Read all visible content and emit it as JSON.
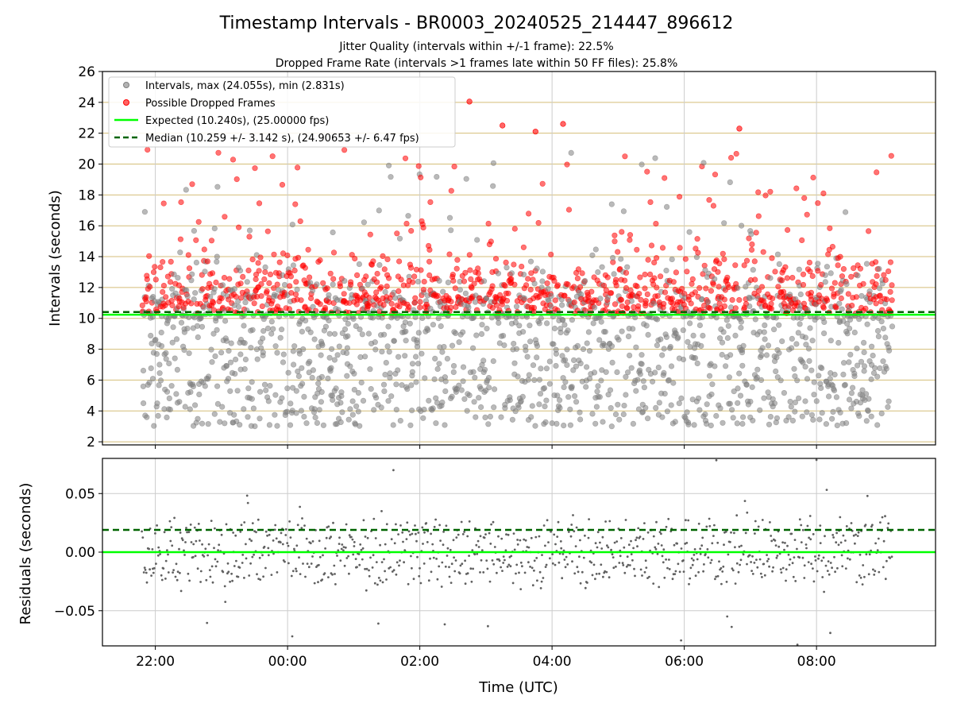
{
  "figure": {
    "title": "Timestamp Intervals - BR0003_20240525_214447_896612",
    "subtitle_1": "Jitter Quality (intervals within +/-1 frame): 22.5%",
    "subtitle_2": "Dropped Frame Rate (intervals >1 frames late within 50 FF files): 25.8%",
    "colors": {
      "interval_points": "#808080",
      "dropped_points": "#ff0000",
      "expected_line": "#00ff00",
      "median_line": "#006400",
      "top_grid": "#d4be78",
      "grid": "#cccccc"
    }
  },
  "chart_data": [
    {
      "type": "scatter",
      "name": "intervals",
      "xlabel": "",
      "ylabel": "Intervals (seconds)",
      "x_ticks": [
        "22:00",
        "00:00",
        "02:00",
        "04:00",
        "06:00",
        "08:00"
      ],
      "x_tick_hours": [
        0,
        2,
        4,
        6,
        8,
        10
      ],
      "x_range_hours": [
        -0.8,
        11.8
      ],
      "data_x_range_hours": [
        -0.2,
        11.15
      ],
      "y_ticks": [
        2,
        4,
        6,
        8,
        10,
        12,
        14,
        16,
        18,
        20,
        22,
        24,
        26
      ],
      "ylim": [
        1.8,
        26
      ],
      "grid": "horizontal",
      "legend_position": "upper-left",
      "legend": [
        "Intervals, max (24.055s), min (2.831s)",
        "Possible Dropped Frames",
        "Expected (10.240s), (25.00000 fps)",
        "Median (10.259 +/- 3.142 s), (24.90653 +/- 6.47 fps)"
      ],
      "expected_interval": 10.24,
      "median_interval": 10.259,
      "max_interval": 24.055,
      "min_interval": 2.831,
      "dropped_threshold": 10.3,
      "point_count": 2400,
      "notable_points": [
        {
          "x": "~02:45",
          "y": 24.05
        },
        {
          "x": "~04:10",
          "y": 22.6
        },
        {
          "x": "~03:15",
          "y": 22.5
        },
        {
          "x": "~06:50",
          "y": 22.3
        },
        {
          "x": "~03:45",
          "y": 22.1
        }
      ]
    },
    {
      "type": "scatter",
      "name": "residuals",
      "xlabel": "Time (UTC)",
      "ylabel": "Residuals (seconds)",
      "x_ticks": [
        "22:00",
        "00:00",
        "02:00",
        "04:00",
        "06:00",
        "08:00"
      ],
      "y_ticks": [
        "0.05",
        "0.00",
        "−0.05"
      ],
      "y_tick_values": [
        0.05,
        0.0,
        -0.05
      ],
      "ylim": [
        -0.08,
        0.08
      ],
      "grid": "both",
      "expected_residual": 0.0,
      "median_residual": 0.019,
      "point_count": 900
    }
  ]
}
